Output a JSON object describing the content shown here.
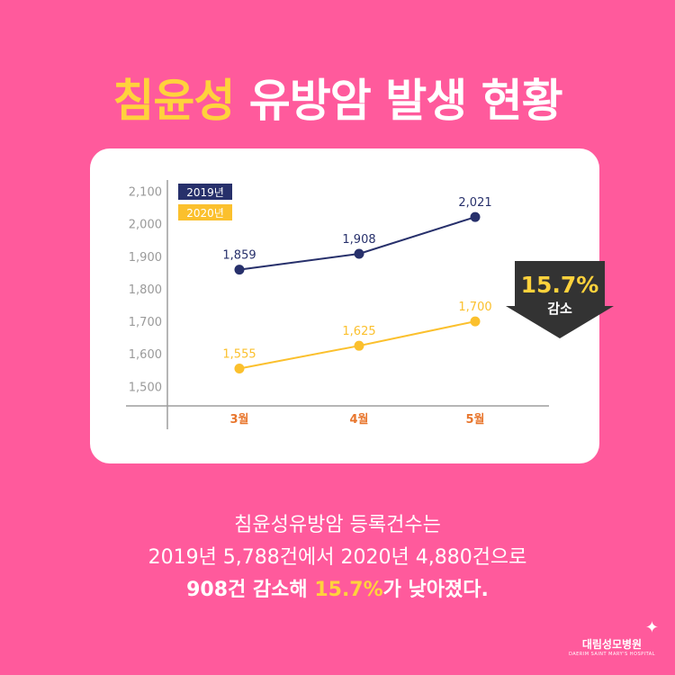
{
  "title": {
    "highlight": "침윤성",
    "rest": "유방암 발생 현황"
  },
  "chart_data": {
    "type": "line",
    "categories": [
      "3월",
      "4월",
      "5월"
    ],
    "series": [
      {
        "name": "2019년",
        "values": [
          1859,
          1908,
          2021
        ],
        "value_labels": [
          "1,859",
          "1,908",
          "2,021"
        ],
        "color": "#27306b"
      },
      {
        "name": "2020년",
        "values": [
          1555,
          1625,
          1700
        ],
        "value_labels": [
          "1,555",
          "1,625",
          "1,700"
        ],
        "color": "#fbc02d"
      }
    ],
    "y_ticks": [
      1500,
      1600,
      1700,
      1800,
      1900,
      2000,
      2100
    ],
    "y_tick_labels": [
      "1,500",
      "1,600",
      "1,700",
      "1,800",
      "1,900",
      "2,000",
      "2,100"
    ],
    "ylim": [
      1440,
      2110
    ],
    "legend_position": "top-left",
    "category_label_color": "#e8762d",
    "grid": false
  },
  "badge": {
    "value": "15.7%",
    "label": "감소"
  },
  "caption": {
    "line1": "침윤성유방암 등록건수는",
    "line2": "2019년 5,788건에서 2020년 4,880건으로",
    "line3_a": "908건 감소해 ",
    "line3_b": "15.7%",
    "line3_c": "가 낮아졌다."
  },
  "logo": {
    "name": "대림성모병원",
    "sub": "DAERIM SAINT MARY'S HOSPITAL"
  }
}
